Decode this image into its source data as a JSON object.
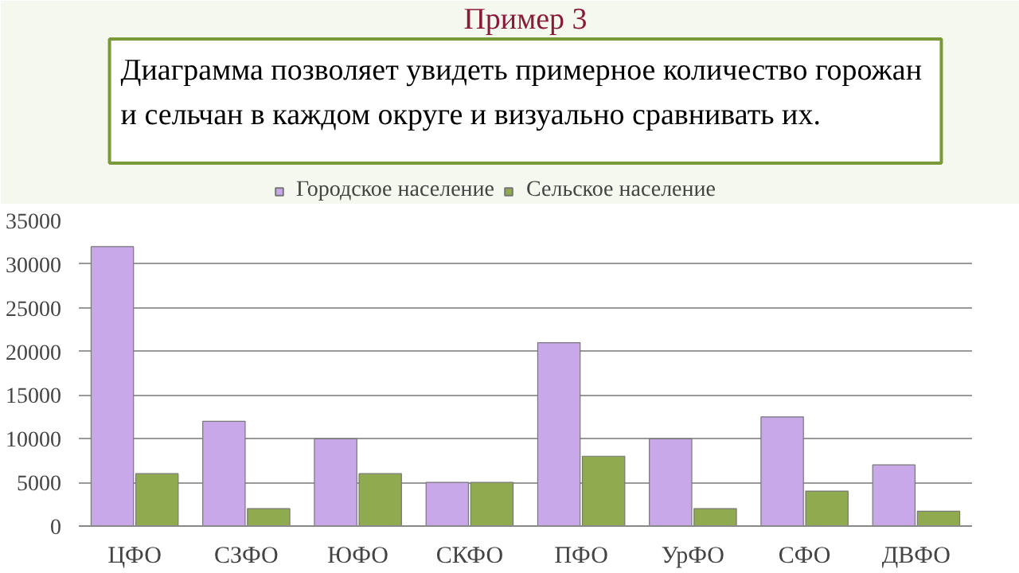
{
  "chart_data": {
    "type": "bar",
    "title": "Пример 3",
    "subtitle": "Диаграмма позволяет увидеть примерное количество горожан\nи сельчан в каждом округе и визуально сравнивать их.",
    "categories": [
      "ЦФО",
      "СЗФО",
      "ЮФО",
      "СКФО",
      "ПФО",
      "УрФО",
      "СФО",
      "ДВФО"
    ],
    "series": [
      {
        "name": "Городское население",
        "color": "#c8a8e8",
        "values": [
          32000,
          12000,
          10000,
          5000,
          21000,
          10000,
          12500,
          7000
        ]
      },
      {
        "name": "Сельское население",
        "color": "#8faa4f",
        "values": [
          6000,
          2000,
          6000,
          5000,
          8000,
          2000,
          4000,
          1700
        ]
      }
    ],
    "ylim": [
      0,
      35000
    ],
    "yticks": [
      0,
      5000,
      10000,
      15000,
      20000,
      25000,
      30000,
      35000
    ],
    "grid": "y",
    "legend": "top"
  }
}
